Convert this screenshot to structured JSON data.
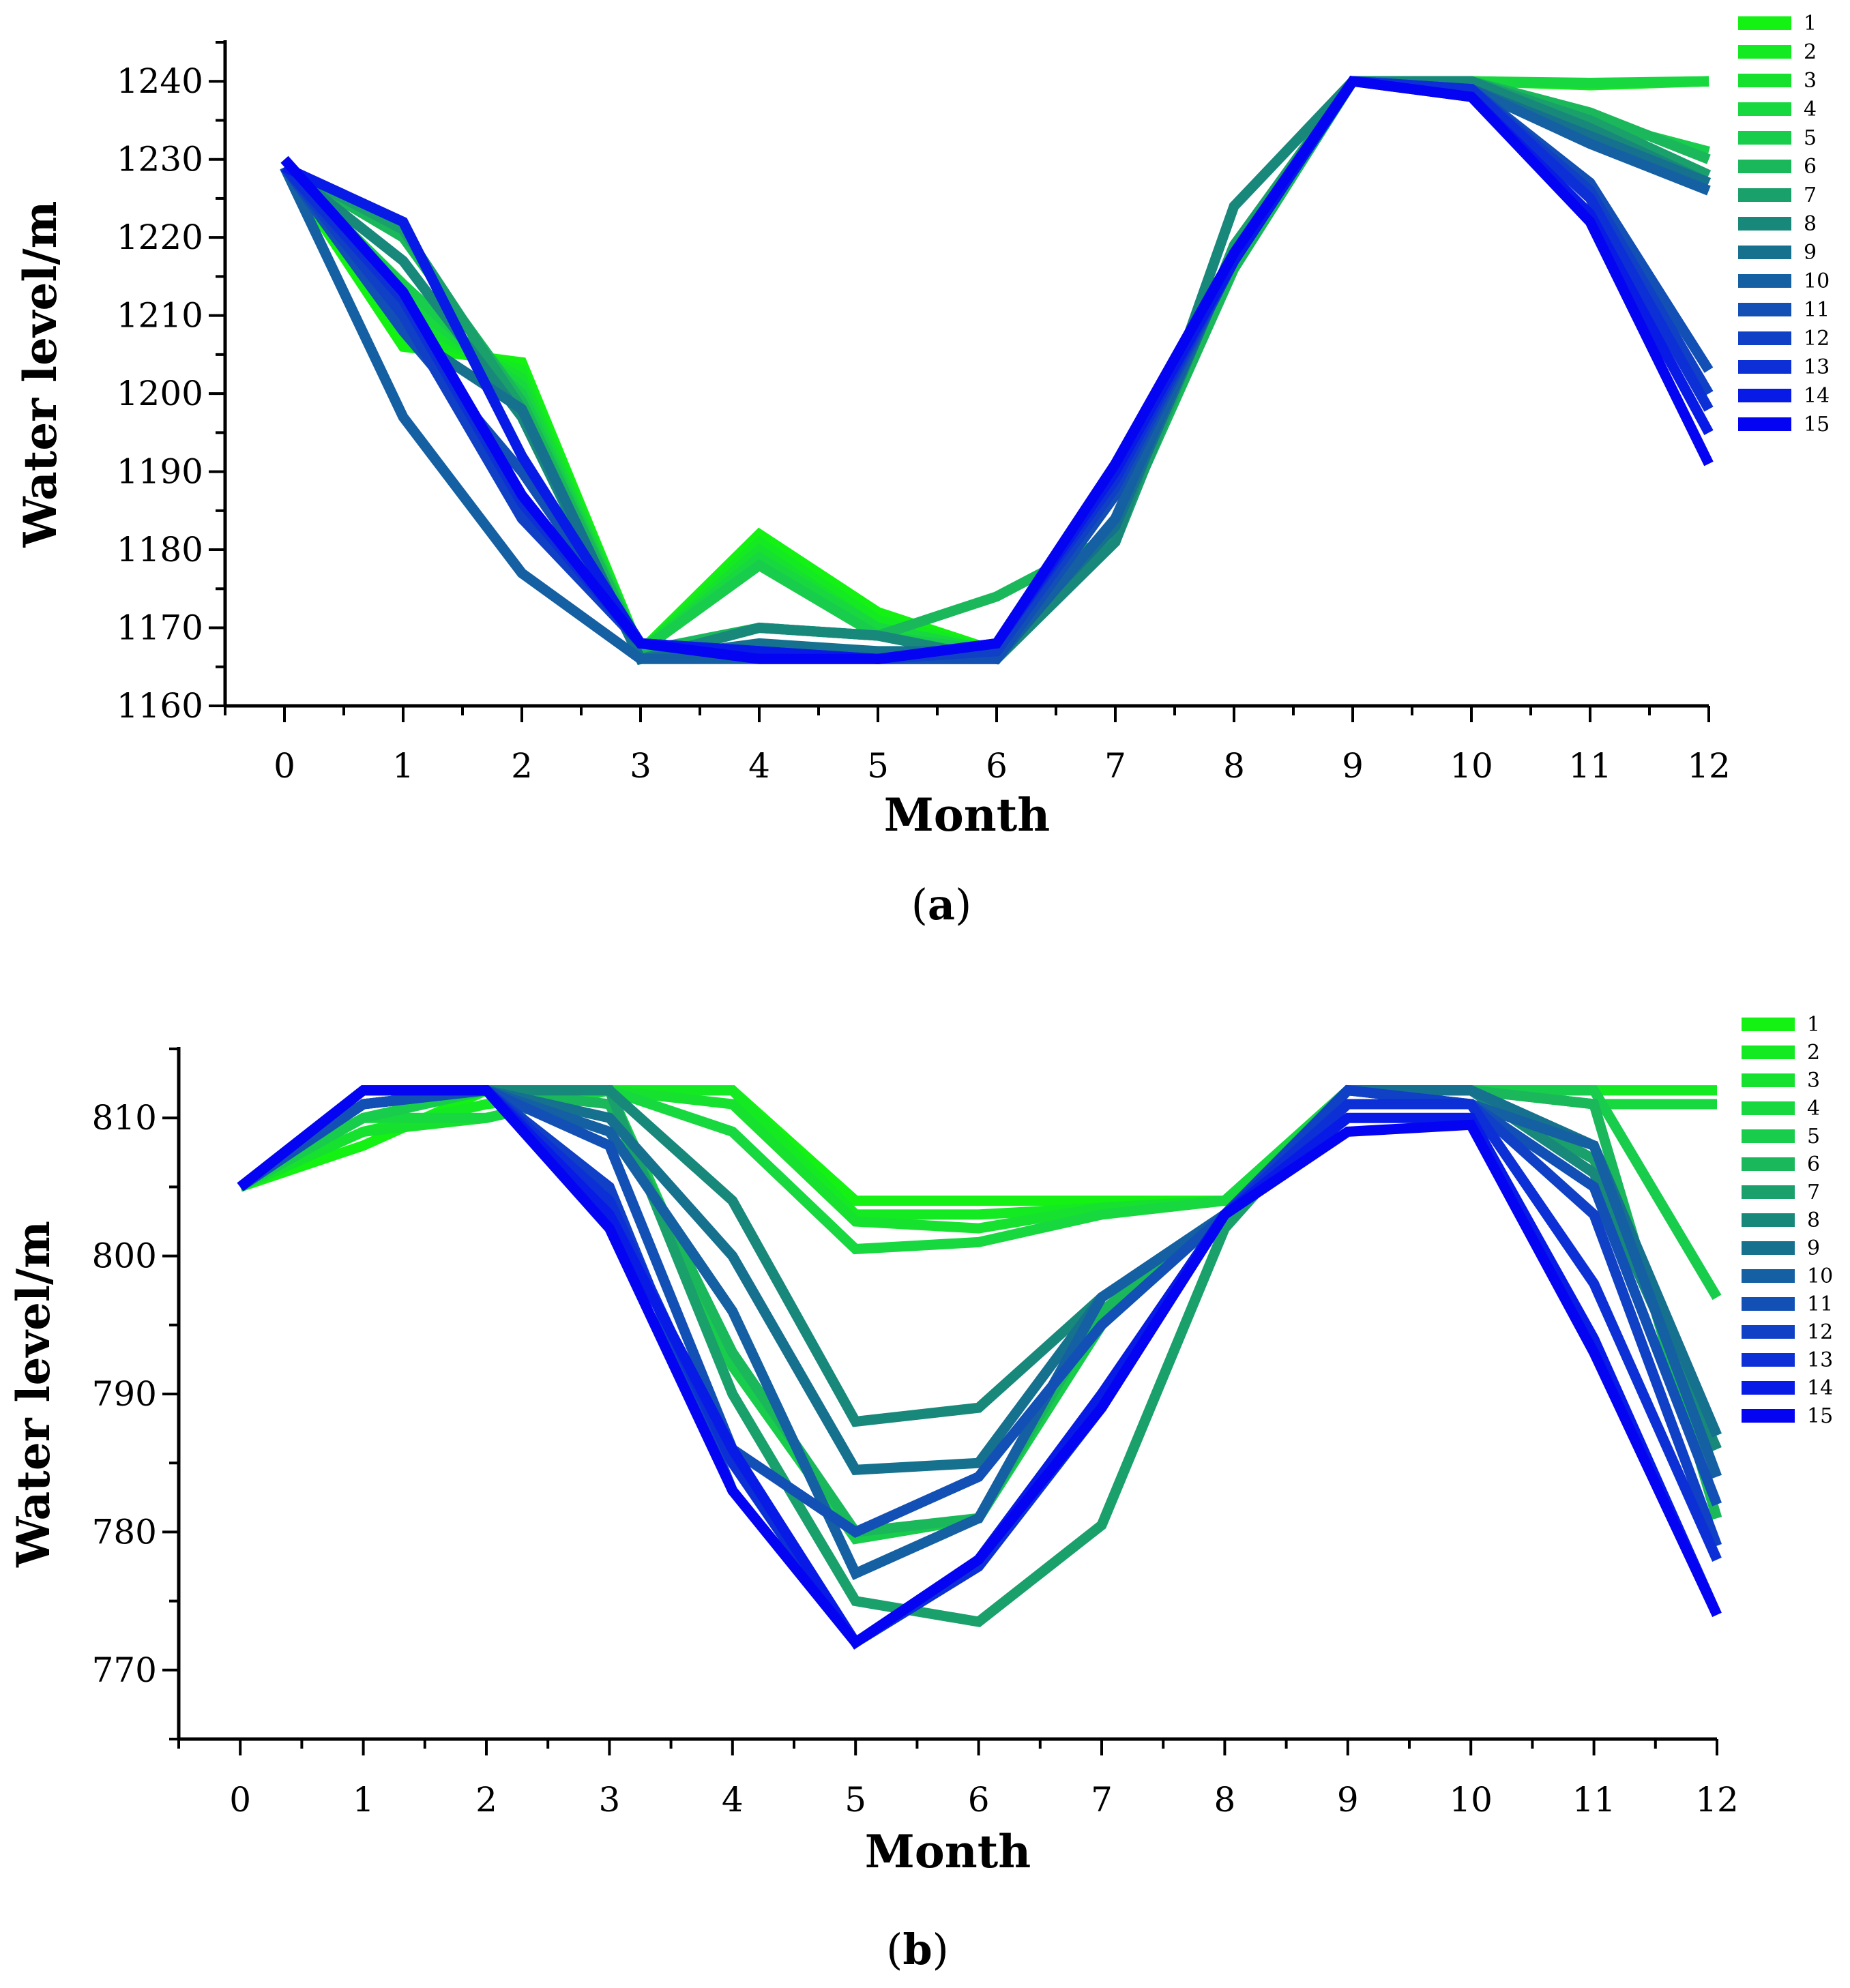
{
  "chart_data": [
    {
      "type": "line",
      "panel_label": "(a)",
      "panel_prefix": "(",
      "panel_letter": "a",
      "panel_suffix": ")",
      "xlabel": "Month",
      "ylabel": "Water level/m",
      "x": [
        0,
        1,
        2,
        3,
        4,
        5,
        6,
        7,
        8,
        9,
        10,
        11,
        12
      ],
      "xlim": [
        -0.5,
        12
      ],
      "ylim": [
        1160,
        1245
      ],
      "yticks": [
        1160,
        1170,
        1180,
        1190,
        1200,
        1210,
        1220,
        1230,
        1240
      ],
      "xticks": [
        0,
        1,
        2,
        3,
        4,
        5,
        6,
        7,
        8,
        9,
        10,
        11,
        12
      ],
      "legend_position": "top-right",
      "series": [
        {
          "name": "1",
          "color": "#13f213",
          "values": [
            1229,
            1206,
            1204,
            1167,
            1182,
            1172,
            1167,
            1182,
            1217,
            1240,
            1240,
            1239.5,
            1240
          ]
        },
        {
          "name": "2",
          "color": "#14ea21",
          "values": [
            1229,
            1208,
            1203,
            1167,
            1181,
            1171,
            1167,
            1182,
            1217,
            1240,
            1240,
            1239.6,
            1240
          ]
        },
        {
          "name": "3",
          "color": "#16e12f",
          "values": [
            1229,
            1210,
            1202,
            1167,
            1180,
            1170,
            1167,
            1182,
            1217,
            1240,
            1240,
            1239.7,
            1240
          ]
        },
        {
          "name": "4",
          "color": "#17d83e",
          "values": [
            1229,
            1212,
            1201,
            1167,
            1179,
            1170,
            1167,
            1182,
            1217,
            1240,
            1240,
            1239.8,
            1240
          ]
        },
        {
          "name": "5",
          "color": "#19cd4c",
          "values": [
            1229,
            1214,
            1200,
            1167,
            1178,
            1169,
            1167,
            1182,
            1217,
            1240,
            1240,
            1235,
            1231
          ]
        },
        {
          "name": "6",
          "color": "#1ab85a",
          "values": [
            1229,
            1220,
            1199,
            1167,
            1170,
            1169,
            1174,
            1182,
            1216,
            1240,
            1240,
            1236,
            1230
          ]
        },
        {
          "name": "7",
          "color": "#1aa06b",
          "values": [
            1229,
            1221,
            1198,
            1166,
            1170,
            1169,
            1166,
            1181,
            1219,
            1240,
            1240,
            1235,
            1228
          ]
        },
        {
          "name": "8",
          "color": "#18887b",
          "values": [
            1229,
            1217,
            1197,
            1166,
            1170,
            1169,
            1166,
            1181,
            1224,
            1240,
            1240,
            1234,
            1227
          ]
        },
        {
          "name": "9",
          "color": "#15718e",
          "values": [
            1229,
            1208,
            1198,
            1166,
            1168,
            1167,
            1167,
            1183,
            1218,
            1240,
            1239,
            1233,
            1227
          ]
        },
        {
          "name": "10",
          "color": "#1460a3",
          "values": [
            1229,
            1197,
            1177,
            1166,
            1166,
            1166,
            1166,
            1184,
            1218,
            1240,
            1239,
            1232,
            1226
          ]
        },
        {
          "name": "11",
          "color": "#1250b5",
          "values": [
            1229,
            1208,
            1190,
            1168,
            1167,
            1166,
            1166,
            1187,
            1217,
            1240,
            1239,
            1227,
            1203
          ]
        },
        {
          "name": "12",
          "color": "#0f40c5",
          "values": [
            1229,
            1210,
            1184,
            1168,
            1167,
            1166,
            1167,
            1188,
            1217,
            1240,
            1239,
            1226,
            1200
          ]
        },
        {
          "name": "13",
          "color": "#0c30d6",
          "values": [
            1229,
            1212,
            1186,
            1168,
            1167,
            1166,
            1168,
            1189,
            1217,
            1240,
            1239,
            1225,
            1198
          ]
        },
        {
          "name": "14",
          "color": "#081ae5",
          "values": [
            1229,
            1222,
            1192,
            1168,
            1167,
            1166,
            1168,
            1190,
            1217,
            1240,
            1238,
            1223,
            1195
          ]
        },
        {
          "name": "15",
          "color": "#0404f2",
          "values": [
            1230,
            1213,
            1187,
            1168,
            1166,
            1166,
            1168,
            1191,
            1218,
            1240,
            1238,
            1222,
            1191
          ]
        }
      ]
    },
    {
      "type": "line",
      "panel_label": "(b)",
      "panel_prefix": "(",
      "panel_letter": "b",
      "panel_suffix": ")",
      "xlabel": "Month",
      "ylabel": "Water level/m",
      "x": [
        0,
        1,
        2,
        3,
        4,
        5,
        6,
        7,
        8,
        9,
        10,
        11,
        12
      ],
      "xlim": [
        -0.5,
        12
      ],
      "ylim": [
        765,
        815
      ],
      "yticks": [
        770,
        780,
        790,
        800,
        810
      ],
      "xticks": [
        0,
        1,
        2,
        3,
        4,
        5,
        6,
        7,
        8,
        9,
        10,
        11,
        12
      ],
      "legend_position": "top-right",
      "series": [
        {
          "name": "1",
          "color": "#13f213",
          "values": [
            805,
            808,
            812,
            812,
            812,
            804,
            804,
            804,
            804,
            812,
            812,
            812,
            812
          ]
        },
        {
          "name": "2",
          "color": "#14ea21",
          "values": [
            805,
            809,
            811,
            812,
            812,
            803,
            803,
            803.5,
            804,
            812,
            812,
            812,
            812
          ]
        },
        {
          "name": "3",
          "color": "#16e12f",
          "values": [
            805,
            809,
            810,
            812,
            811,
            802.5,
            802,
            803.5,
            804,
            812,
            812,
            811,
            811
          ]
        },
        {
          "name": "4",
          "color": "#17d83e",
          "values": [
            805,
            810,
            810,
            812,
            809,
            800.5,
            801,
            803,
            804,
            812,
            812,
            811,
            811
          ]
        },
        {
          "name": "5",
          "color": "#19cd4c",
          "values": [
            805,
            810,
            812,
            812,
            792,
            779.5,
            781,
            795,
            803,
            812,
            812,
            812,
            797
          ]
        },
        {
          "name": "6",
          "color": "#1ab85a",
          "values": [
            805,
            811,
            812,
            811,
            793,
            780,
            781,
            796,
            803,
            812,
            812,
            811,
            781
          ]
        },
        {
          "name": "7",
          "color": "#1aa06b",
          "values": [
            805,
            811,
            812,
            812,
            790,
            775,
            773.5,
            780.5,
            802,
            812,
            812,
            807,
            787
          ]
        },
        {
          "name": "8",
          "color": "#18887b",
          "values": [
            805,
            811,
            812,
            812,
            804,
            788,
            789,
            797,
            803,
            812,
            812,
            806,
            786
          ]
        },
        {
          "name": "9",
          "color": "#15718e",
          "values": [
            805,
            811,
            812,
            810,
            800,
            784.5,
            785,
            797,
            803,
            812,
            812,
            808,
            787
          ]
        },
        {
          "name": "10",
          "color": "#1460a3",
          "values": [
            805,
            811,
            812,
            809,
            796,
            777,
            781,
            797,
            803,
            812,
            811,
            808,
            784
          ]
        },
        {
          "name": "11",
          "color": "#1250b5",
          "values": [
            805,
            811,
            812,
            808,
            786,
            780,
            784,
            795,
            803,
            812,
            811,
            805,
            782
          ]
        },
        {
          "name": "12",
          "color": "#0f40c5",
          "values": [
            805,
            812,
            812,
            805,
            783,
            772,
            778,
            790,
            803,
            812,
            811,
            803,
            779
          ]
        },
        {
          "name": "13",
          "color": "#0c30d6",
          "values": [
            805,
            812,
            812,
            804,
            785,
            772,
            777.5,
            789,
            803,
            811,
            811,
            798,
            778
          ]
        },
        {
          "name": "14",
          "color": "#081ae5",
          "values": [
            805,
            812,
            812,
            803,
            786,
            772,
            778,
            790,
            803,
            810,
            810,
            794,
            774
          ]
        },
        {
          "name": "15",
          "color": "#0404f2",
          "values": [
            805,
            812,
            812,
            802,
            783,
            772,
            778,
            789,
            803,
            809,
            809.5,
            793,
            774
          ]
        }
      ]
    }
  ]
}
